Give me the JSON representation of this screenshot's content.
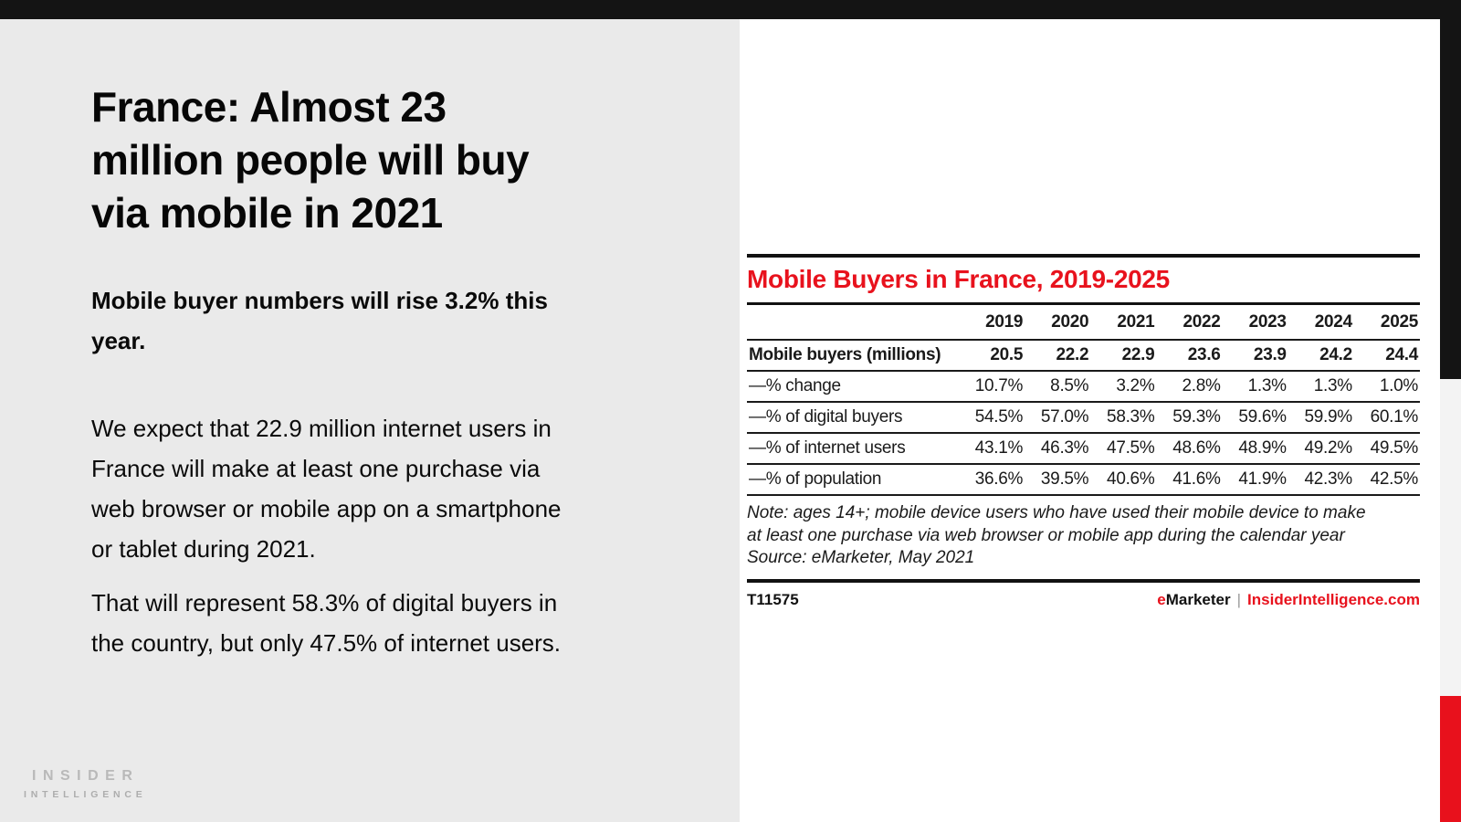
{
  "theme": {
    "accent_red": "#e8121d",
    "bar_black": "#141414",
    "left_panel_bg": "#eaeaea",
    "edge_gray": "#f3f3f3"
  },
  "slide": {
    "title": "France: Almost 23\nmillion people will buy\nvia mobile in 2021",
    "subtitle": "Mobile buyer numbers will rise 3.2% this\nyear.",
    "paragraphs": [
      "We expect that 22.9 million internet users in\nFrance will make at least one purchase via\nweb browser or mobile app on a smartphone\nor tablet during 2021.",
      "That will represent 58.3% of digital buyers in\nthe country, but only 47.5% of internet users."
    ],
    "logo": {
      "line1": "INSIDER",
      "line2": "INTELLIGENCE"
    }
  },
  "chart": {
    "note": "Note: ages 14+; mobile device users who have used their mobile device to make\nat least one purchase via web browser or mobile app during the calendar year\nSource: eMarketer, May 2021",
    "chart_id": "T11575",
    "brand": {
      "e": "e",
      "marketer": "Marketer",
      "separator": "|",
      "site": "InsiderIntelligence.com"
    }
  },
  "chart_data": {
    "type": "table",
    "title": "Mobile Buyers in France, 2019-2025",
    "columns": [
      "2019",
      "2020",
      "2021",
      "2022",
      "2023",
      "2024",
      "2025"
    ],
    "rows": [
      {
        "label": "Mobile buyers (millions)",
        "bold": true,
        "values": [
          "20.5",
          "22.2",
          "22.9",
          "23.6",
          "23.9",
          "24.2",
          "24.4"
        ]
      },
      {
        "label": "—% change",
        "bold": false,
        "values": [
          "10.7%",
          "8.5%",
          "3.2%",
          "2.8%",
          "1.3%",
          "1.3%",
          "1.0%"
        ]
      },
      {
        "label": "—% of digital buyers",
        "bold": false,
        "values": [
          "54.5%",
          "57.0%",
          "58.3%",
          "59.3%",
          "59.6%",
          "59.9%",
          "60.1%"
        ]
      },
      {
        "label": "—% of internet users",
        "bold": false,
        "values": [
          "43.1%",
          "46.3%",
          "47.5%",
          "48.6%",
          "48.9%",
          "49.2%",
          "49.5%"
        ]
      },
      {
        "label": "—% of population",
        "bold": false,
        "values": [
          "36.6%",
          "39.5%",
          "40.6%",
          "41.6%",
          "41.9%",
          "42.3%",
          "42.5%"
        ]
      }
    ],
    "source": "Source: eMarketer, May 2021",
    "note": "ages 14+; mobile device users who have used their mobile device to make at least one purchase via web browser or mobile app during the calendar year",
    "layout_hints": {
      "row_label_column_first": true,
      "grid": "horizontal-rules"
    }
  }
}
